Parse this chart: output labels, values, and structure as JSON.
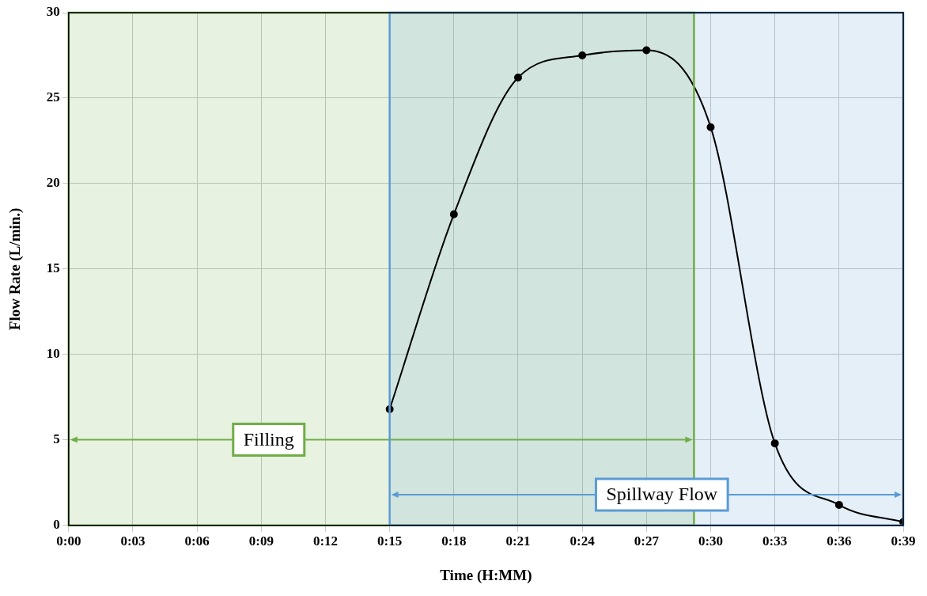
{
  "chart_data": {
    "type": "line",
    "xlabel": "Time (H:MM)",
    "ylabel": "Flow Rate (L/min.)",
    "x": [
      0.25,
      0.3,
      0.35,
      0.4,
      0.45,
      0.5,
      0.55,
      0.6,
      0.65
    ],
    "series": [
      {
        "color": "#000000",
        "values": [
          6.8,
          18.2,
          26.2,
          27.5,
          27.8,
          23.3,
          4.8,
          1.2,
          0.2
        ]
      }
    ],
    "xlim": [
      0,
      0.65
    ],
    "xticks": [
      {
        "value": 0,
        "label": "0:00"
      },
      {
        "value": 0.05,
        "label": "0:03"
      },
      {
        "value": 0.1,
        "label": "0:06"
      },
      {
        "value": 0.15,
        "label": "0:09"
      },
      {
        "value": 0.2,
        "label": "0:12"
      },
      {
        "value": 0.25,
        "label": "0:15"
      },
      {
        "value": 0.3,
        "label": "0:18"
      },
      {
        "value": 0.35,
        "label": "0:21"
      },
      {
        "value": 0.4,
        "label": "0:24"
      },
      {
        "value": 0.45,
        "label": "0:27"
      },
      {
        "value": 0.5,
        "label": "0:30"
      },
      {
        "value": 0.55,
        "label": "0:33"
      },
      {
        "value": 0.6,
        "label": "0:36"
      },
      {
        "value": 0.65,
        "label": "0:39"
      }
    ],
    "ylim": [
      0,
      30
    ],
    "yticks": [
      0,
      5,
      10,
      15,
      20,
      25,
      30
    ],
    "bands": [
      {
        "axis": "x",
        "from": 0,
        "to": 0.487,
        "label": "Filling",
        "color": "#70ad47"
      },
      {
        "axis": "x",
        "from": 0.25,
        "to": 0.65,
        "label": "Spillway Flow",
        "color": "#5b9bd5"
      }
    ],
    "grid": true,
    "legend": false,
    "marker": "circle",
    "line_style": "solid"
  }
}
